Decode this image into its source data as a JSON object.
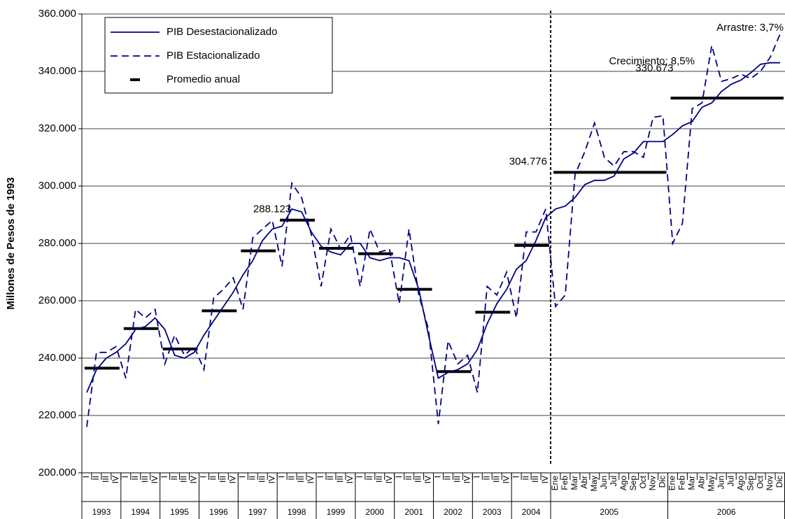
{
  "chart_data": {
    "type": "line",
    "y_label": "Millones de Pesos de 1993",
    "ylim": [
      200000,
      360000
    ],
    "yticks": [
      {
        "value": 200000,
        "label": "200.000"
      },
      {
        "value": 220000,
        "label": "220.000"
      },
      {
        "value": 240000,
        "label": "240.000"
      },
      {
        "value": 260000,
        "label": "260.000"
      },
      {
        "value": 280000,
        "label": "280.000"
      },
      {
        "value": 300000,
        "label": "300.000"
      },
      {
        "value": 320000,
        "label": "320.000"
      },
      {
        "value": 340000,
        "label": "340.000"
      },
      {
        "value": 360000,
        "label": "360.000"
      }
    ],
    "grid": true,
    "year_groups": [
      {
        "name": "1993",
        "categories": [
          "I",
          "II",
          "III",
          "IV"
        ]
      },
      {
        "name": "1994",
        "categories": [
          "I",
          "II",
          "III",
          "IV"
        ]
      },
      {
        "name": "1995",
        "categories": [
          "I",
          "II",
          "III",
          "IV"
        ]
      },
      {
        "name": "1996",
        "categories": [
          "I",
          "II",
          "III",
          "IV"
        ]
      },
      {
        "name": "1997",
        "categories": [
          "I",
          "II",
          "III",
          "IV"
        ]
      },
      {
        "name": "1998",
        "categories": [
          "I",
          "II",
          "III",
          "IV"
        ]
      },
      {
        "name": "1999",
        "categories": [
          "I",
          "II",
          "III",
          "IV"
        ]
      },
      {
        "name": "2000",
        "categories": [
          "I",
          "II",
          "III",
          "IV"
        ]
      },
      {
        "name": "2001",
        "categories": [
          "I",
          "II",
          "III",
          "IV"
        ]
      },
      {
        "name": "2002",
        "categories": [
          "I",
          "II",
          "III",
          "IV"
        ]
      },
      {
        "name": "2003",
        "categories": [
          "I",
          "II",
          "III",
          "IV"
        ]
      },
      {
        "name": "2004",
        "categories": [
          "I",
          "II",
          "III",
          "IV"
        ]
      },
      {
        "name": "2005",
        "categories": [
          "Ene",
          "Feb",
          "Mar",
          "Abr",
          "May",
          "Jun",
          "Jul",
          "Ago",
          "Sep",
          "Oct",
          "Nov",
          "Dic"
        ]
      },
      {
        "name": "2006",
        "categories": [
          "Ene",
          "Feb",
          "Mar",
          "Abr",
          "May",
          "Jun",
          "Jul",
          "Ago",
          "Sep",
          "Oct",
          "Nov",
          "Dic"
        ]
      }
    ],
    "series": [
      {
        "name": "PIB Desestacionalizado",
        "color": "#000080",
        "dash": false,
        "values": [
          228000,
          236000,
          240000,
          242000,
          245000,
          250000,
          251000,
          254000,
          250000,
          241000,
          240000,
          242000,
          248000,
          253000,
          258000,
          263000,
          269000,
          274000,
          281000,
          285000,
          286000,
          292000,
          291000,
          284000,
          279000,
          277000,
          276000,
          280000,
          280000,
          275000,
          274000,
          275000,
          275000,
          274000,
          264000,
          248000,
          233000,
          235000,
          236000,
          238000,
          243000,
          252000,
          259000,
          264000,
          271000,
          274000,
          281000,
          289000,
          292000,
          293000,
          296000,
          300500,
          302000,
          302000,
          303500,
          309500,
          311500,
          315500,
          315500,
          315500,
          318000,
          321000,
          322500,
          327500,
          329000,
          333000,
          335500,
          337000,
          339500,
          342500,
          343000,
          343000
        ]
      },
      {
        "name": "PIB Estacionalizado",
        "color": "#000080",
        "dash": true,
        "values": [
          216000,
          242000,
          242000,
          244000,
          233000,
          257000,
          254000,
          257000,
          238000,
          248000,
          241000,
          244000,
          236000,
          261000,
          264000,
          268000,
          257000,
          282000,
          285000,
          288000,
          272000,
          301000,
          296000,
          283000,
          265000,
          285000,
          278000,
          283000,
          265000,
          285000,
          277000,
          278000,
          259000,
          285000,
          262000,
          250000,
          217000,
          246000,
          238000,
          241000,
          228000,
          265000,
          262000,
          270000,
          254000,
          284000,
          284000,
          292000,
          258000,
          262000,
          304000,
          312000,
          322000,
          310000,
          307000,
          312000,
          312000,
          310000,
          324000,
          324500,
          280000,
          287000,
          327000,
          329000,
          349000,
          336500,
          337500,
          339000,
          337500,
          340000,
          345000,
          353000
        ]
      }
    ],
    "averages": {
      "name": "Promedio anual",
      "color": "#000000",
      "values": [
        236500,
        250300,
        243200,
        256500,
        277400,
        288123,
        278300,
        276400,
        264000,
        235300,
        256000,
        279300,
        304776,
        330673
      ],
      "value_labels": [
        null,
        null,
        null,
        null,
        null,
        "288.123",
        null,
        null,
        null,
        null,
        null,
        null,
        "304.776",
        "330.673"
      ]
    },
    "annotations": [
      "Crecimiento: 8,5%",
      "Arrastre: 3,7%"
    ]
  }
}
